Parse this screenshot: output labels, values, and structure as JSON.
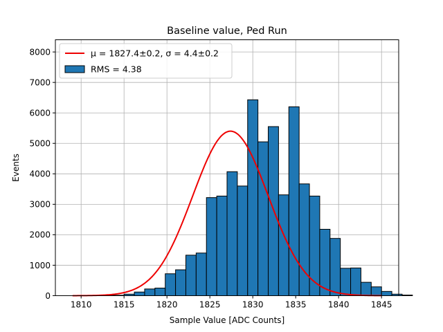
{
  "chart_data": {
    "type": "bar",
    "title": "Baseline value, Ped Run",
    "xlabel": "Sample Value [ADC Counts]",
    "ylabel": "Events",
    "xlim": [
      1807,
      1847
    ],
    "ylim": [
      0,
      8400
    ],
    "xticks": [
      1810,
      1815,
      1820,
      1825,
      1830,
      1835,
      1840,
      1845
    ],
    "yticks": [
      0,
      1000,
      2000,
      3000,
      4000,
      5000,
      6000,
      7000,
      8000
    ],
    "grid": true,
    "legend_position": "top-left",
    "histogram": {
      "name": "RMS = 4.38",
      "color": "#1f77b4",
      "edge_color": "#000000",
      "bin_start": 1809,
      "bin_width": 1.2,
      "values": [
        0,
        0,
        0,
        10,
        15,
        50,
        120,
        220,
        250,
        720,
        850,
        1330,
        1400,
        3220,
        3270,
        4070,
        3600,
        6430,
        5050,
        5550,
        3310,
        6200,
        3670,
        3270,
        2180,
        1880,
        900,
        910,
        440,
        290,
        140,
        50,
        20,
        0,
        0,
        0
      ]
    },
    "fit": {
      "name": "μ = 1827.4±0.2, σ = 4.4±0.2",
      "color": "#ee0000",
      "mu": 1827.4,
      "sigma": 4.4,
      "amplitude": 5400,
      "x_range": [
        1809,
        1845
      ]
    }
  }
}
